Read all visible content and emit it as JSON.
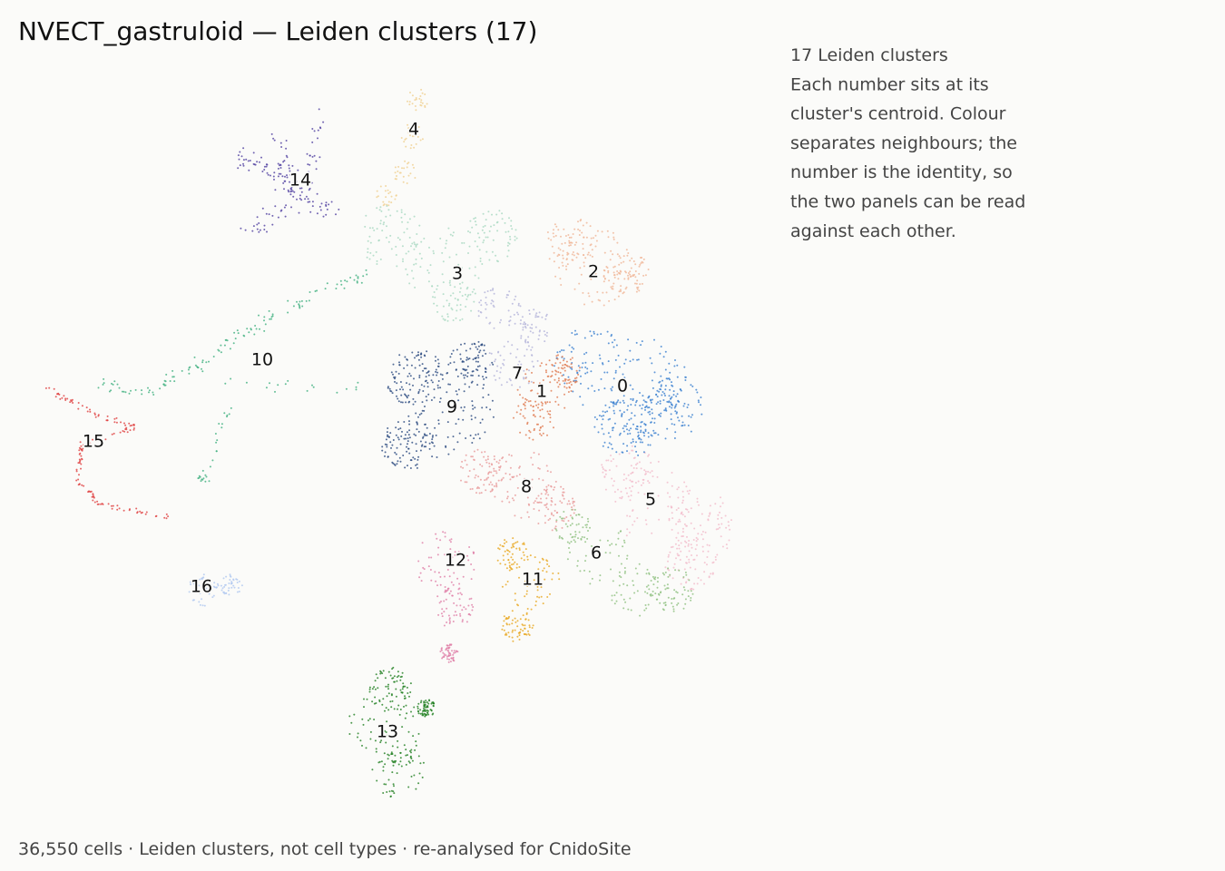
{
  "chart_data": {
    "type": "scatter",
    "title": "NVECT_gastruloid — Leiden clusters (17)",
    "annotation": [
      "17 Leiden clusters",
      "Each number sits at its",
      "cluster's centroid. Colour",
      "separates neighbours; the",
      "number is the identity, so",
      "the two panels can be read",
      "against each other."
    ],
    "caption": "36,550 cells · Leiden clusters, not cell types · re-analysed for CnidoSite",
    "clusters": [
      {
        "name": "0",
        "color": "#3a7fd0"
      },
      {
        "name": "1",
        "color": "#e07a50"
      },
      {
        "name": "2",
        "color": "#f0b596"
      },
      {
        "name": "3",
        "color": "#a8d8c0"
      },
      {
        "name": "4",
        "color": "#f0d090"
      },
      {
        "name": "5",
        "color": "#f2bccb"
      },
      {
        "name": "6",
        "color": "#8fc080"
      },
      {
        "name": "7",
        "color": "#b4b4da"
      },
      {
        "name": "8",
        "color": "#e89a9a"
      },
      {
        "name": "9",
        "color": "#2a4a80"
      },
      {
        "name": "10",
        "color": "#40b080"
      },
      {
        "name": "11",
        "color": "#e8a820"
      },
      {
        "name": "12",
        "color": "#e080a8"
      },
      {
        "name": "13",
        "color": "#208020"
      },
      {
        "name": "14",
        "color": "#5040a0"
      },
      {
        "name": "15",
        "color": "#e04040"
      },
      {
        "name": "16",
        "color": "#b0c8f0"
      }
    ]
  }
}
